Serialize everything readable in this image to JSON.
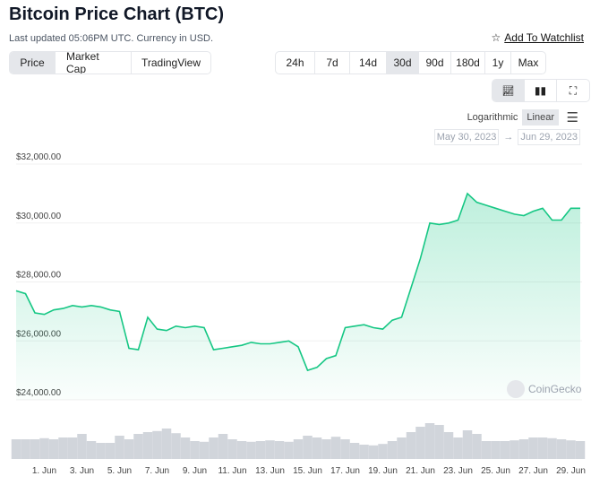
{
  "header": {
    "title": "Bitcoin Price Chart (BTC)",
    "updated": "Last updated 05:06PM UTC. Currency in USD.",
    "watchlist": "Add To Watchlist",
    "watchlist_icon": "star-outline-icon"
  },
  "view_tabs": [
    {
      "label": "Price",
      "active": true
    },
    {
      "label": "Market Cap",
      "active": false
    },
    {
      "label": "TradingView",
      "active": false
    }
  ],
  "ranges": [
    {
      "label": "24h"
    },
    {
      "label": "7d"
    },
    {
      "label": "14d"
    },
    {
      "label": "30d",
      "active": true
    },
    {
      "label": "90d"
    },
    {
      "label": "180d"
    },
    {
      "label": "1y"
    },
    {
      "label": "Max"
    }
  ],
  "chart_types": [
    {
      "icon": "line-chart-icon",
      "active": true
    },
    {
      "icon": "candlestick-icon"
    },
    {
      "icon": "fullscreen-icon"
    }
  ],
  "scale": {
    "log": "Logarithmic",
    "linear": "Linear",
    "selected": "Linear",
    "menu_icon": "hamburger-menu-icon"
  },
  "date_range": {
    "from": "May 30, 2023",
    "arrow": "→",
    "to": "Jun 29, 2023"
  },
  "watermark": "CoinGecko",
  "colors": {
    "line": "#16c784",
    "fill": "#16c784",
    "volume": "#d1d5db"
  },
  "chart_data": {
    "type": "area",
    "ylim": [
      24000,
      32000
    ],
    "yticks": [
      "$24,000.00",
      "$26,000.00",
      "$28,000.00",
      "$30,000.00",
      "$32,000.00"
    ],
    "ytick_values": [
      24000,
      26000,
      28000,
      30000,
      32000
    ],
    "xticks": [
      "1. Jun",
      "3. Jun",
      "5. Jun",
      "7. Jun",
      "9. Jun",
      "11. Jun",
      "13. Jun",
      "15. Jun",
      "17. Jun",
      "19. Jun",
      "21. Jun",
      "23. Jun",
      "25. Jun",
      "27. Jun",
      "29. Jun"
    ],
    "xtick_dates": [
      "2023-06-01",
      "2023-06-03",
      "2023-06-05",
      "2023-06-07",
      "2023-06-09",
      "2023-06-11",
      "2023-06-13",
      "2023-06-15",
      "2023-06-17",
      "2023-06-19",
      "2023-06-21",
      "2023-06-23",
      "2023-06-25",
      "2023-06-27",
      "2023-06-29"
    ],
    "x_start": "2023-05-30T12:00",
    "x_step_hours": 12,
    "price": [
      27700,
      27600,
      26950,
      26900,
      27050,
      27100,
      27200,
      27150,
      27200,
      27150,
      27050,
      27000,
      25750,
      25700,
      26800,
      26400,
      26350,
      26500,
      26450,
      26500,
      26450,
      25700,
      25750,
      25800,
      25850,
      25950,
      25900,
      25900,
      25950,
      26000,
      25800,
      25000,
      25100,
      25400,
      25500,
      26450,
      26500,
      26550,
      26450,
      26400,
      26700,
      26800,
      27800,
      28800,
      30000,
      29950,
      30000,
      30100,
      31000,
      30700,
      30600,
      30500,
      30400,
      30300,
      30250,
      30400,
      30500,
      30100,
      30100,
      30500,
      30500
    ],
    "volume_relative": [
      0.55,
      0.55,
      0.55,
      0.58,
      0.55,
      0.6,
      0.6,
      0.7,
      0.5,
      0.45,
      0.45,
      0.65,
      0.55,
      0.7,
      0.75,
      0.78,
      0.85,
      0.72,
      0.6,
      0.5,
      0.48,
      0.6,
      0.7,
      0.55,
      0.5,
      0.48,
      0.5,
      0.52,
      0.5,
      0.48,
      0.55,
      0.65,
      0.6,
      0.55,
      0.62,
      0.55,
      0.45,
      0.4,
      0.38,
      0.42,
      0.5,
      0.6,
      0.75,
      0.9,
      1.0,
      0.95,
      0.75,
      0.6,
      0.8,
      0.7,
      0.5,
      0.5,
      0.5,
      0.52,
      0.55,
      0.6,
      0.6,
      0.58,
      0.55,
      0.52,
      0.5
    ]
  }
}
